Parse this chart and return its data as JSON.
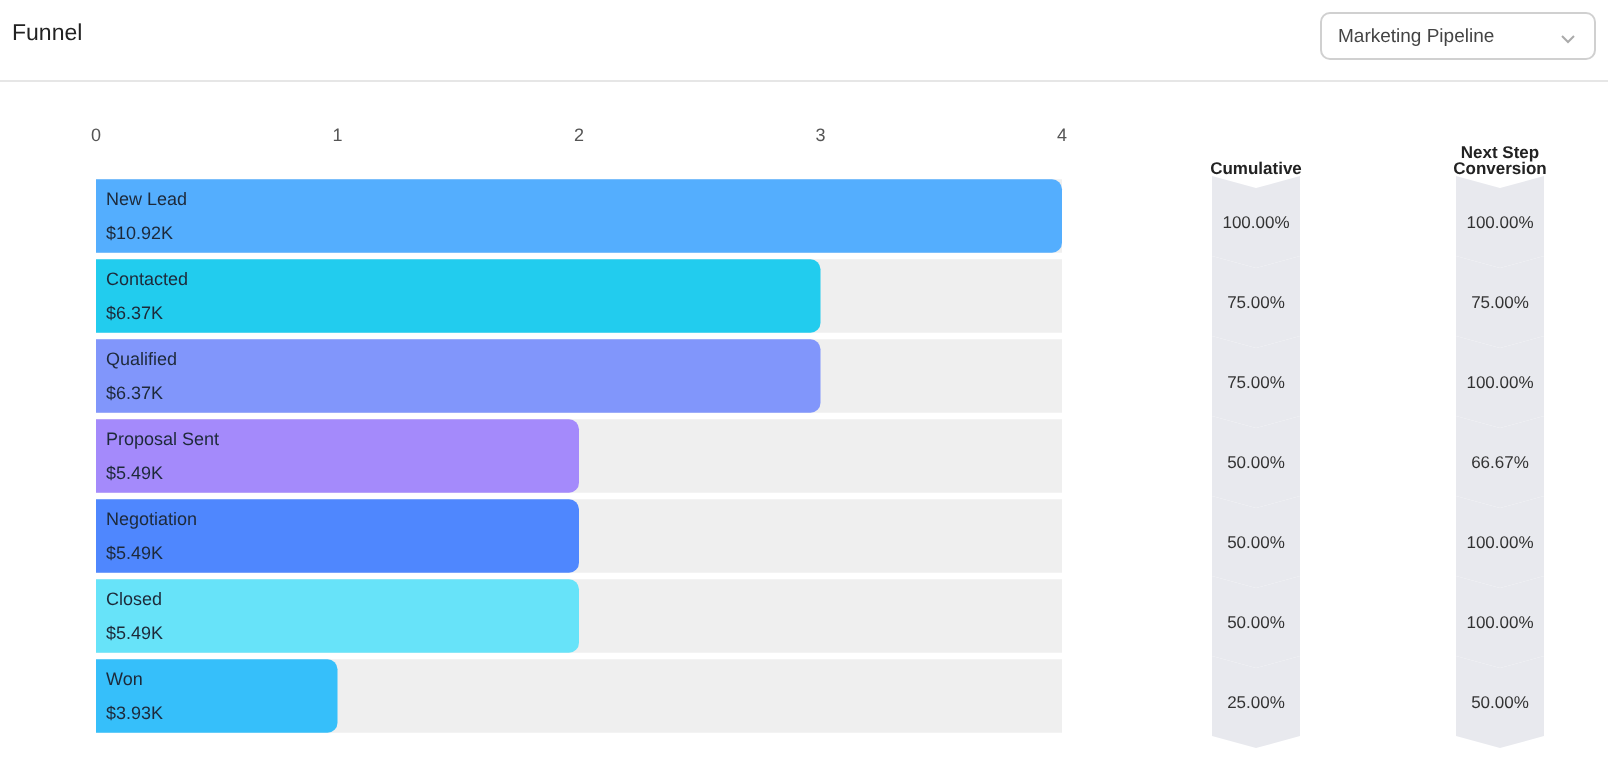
{
  "chart_data": [
    {
      "type": "bar",
      "title": "Funnel",
      "orientation": "horizontal",
      "categories": [
        "New Lead",
        "Contacted",
        "Qualified",
        "Proposal Sent",
        "Negotiation",
        "Closed",
        "Won"
      ],
      "values": [
        4,
        3,
        3,
        2,
        2,
        2,
        1
      ],
      "colors": [
        "#54aefe",
        "#22ccee",
        "#8196fb",
        "#a48afb",
        "#4f87fe",
        "#67e3f9",
        "#36bffa"
      ],
      "xlim": [
        0,
        4
      ],
      "xticks": [
        0,
        1,
        2,
        3,
        4
      ],
      "grid": false,
      "tick_labels": "x",
      "annotations": [
        "Marketing Pipeline",
        "$10.92K",
        "$6.37K",
        "$6.37K",
        "$5.49K",
        "$5.49K",
        "$5.49K",
        "$3.93K"
      ]
    },
    {
      "type": "other",
      "title": "Cumulative",
      "values": [
        100,
        75,
        75,
        50,
        50,
        50,
        25
      ],
      "value_labels": [
        "100.00%",
        "75.00%",
        "75.00%",
        "50.00%",
        "50.00%",
        "50.00%",
        "25.00%"
      ]
    },
    {
      "type": "other",
      "title": "Next Step Conversion",
      "values": [
        100,
        75,
        100,
        66.67,
        100,
        100,
        50
      ],
      "value_labels": [
        "100.00%",
        "75.00%",
        "100.00%",
        "66.67%",
        "100.00%",
        "100.00%",
        "50.00%"
      ]
    }
  ]
}
